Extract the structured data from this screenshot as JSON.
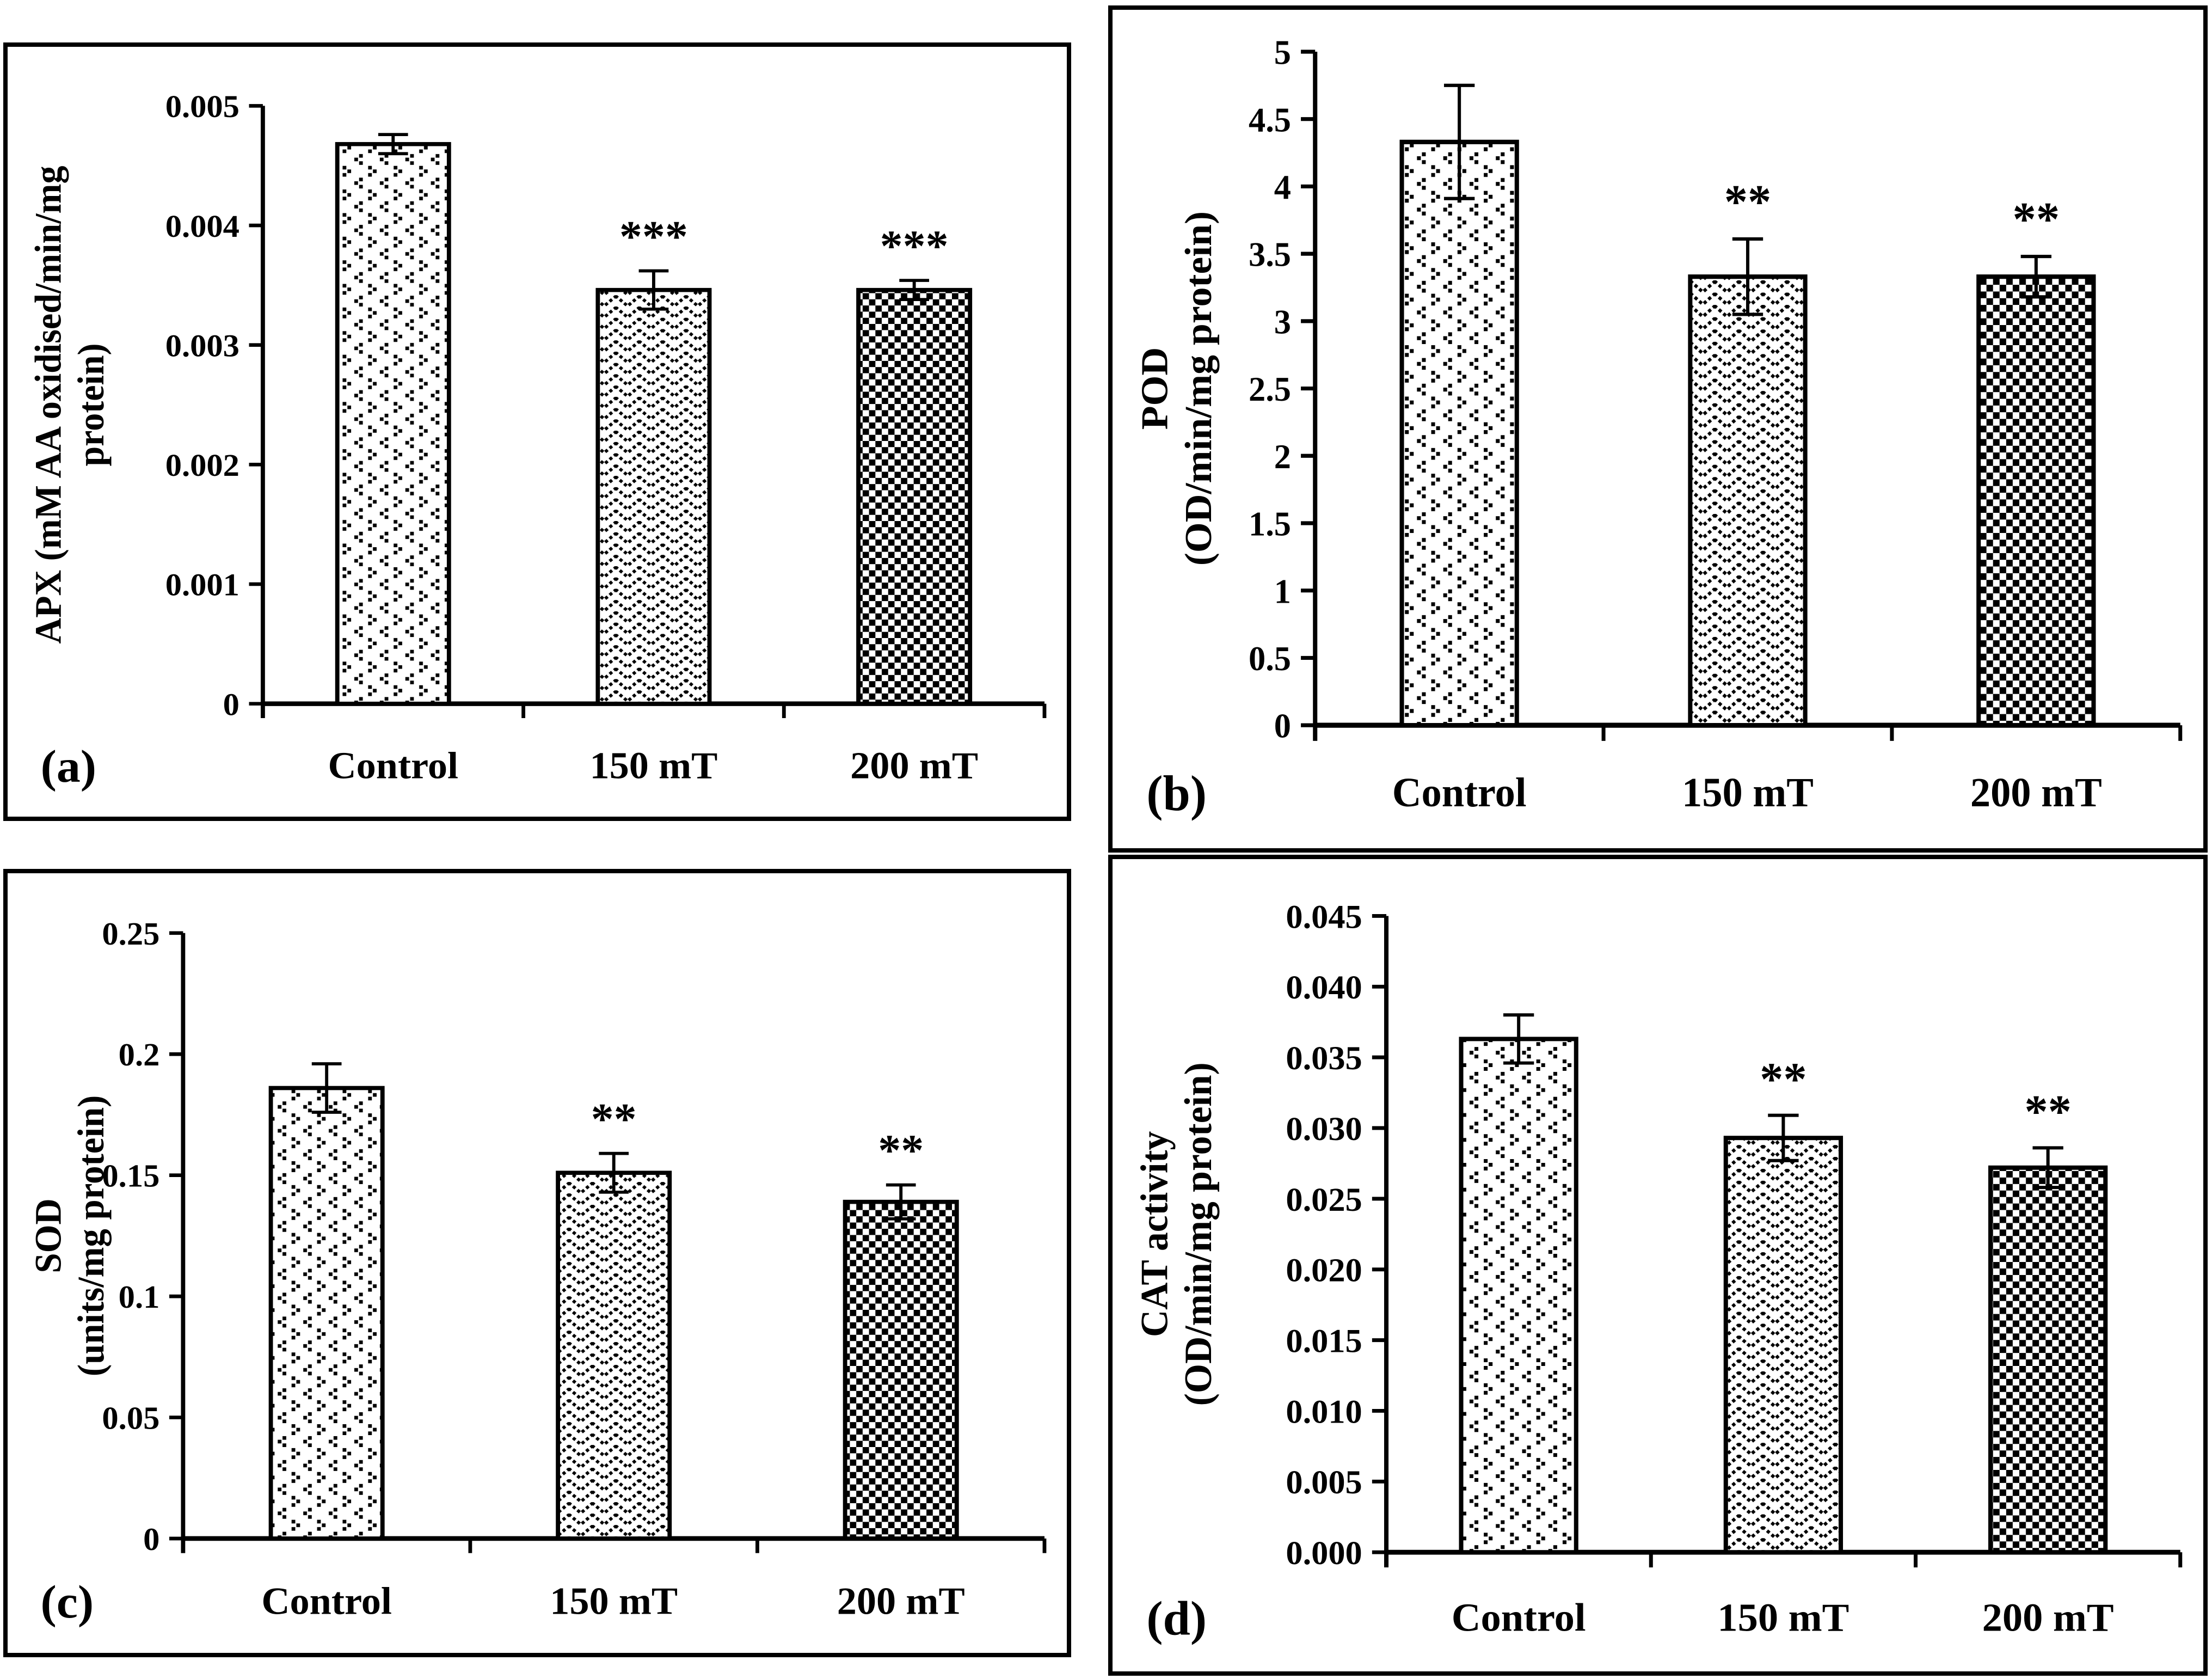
{
  "figure": {
    "background": "#ffffff",
    "ink_color": "#000000",
    "panel_letters": [
      "(a)",
      "(b)",
      "(c)",
      "(d)"
    ]
  },
  "chart_data": [
    {
      "type": "bar",
      "panel_label": "(a)",
      "ylabel_lines": [
        "APX (mM AA oxidised/min/mg",
        "protein)"
      ],
      "ymin": 0,
      "ymax": 0.005,
      "ytick_labels": [
        "0",
        "0.001",
        "0.002",
        "0.003",
        "0.004",
        "0.005"
      ],
      "categories": [
        "Control",
        "150 mT",
        "200 mT"
      ],
      "values": [
        0.00468,
        0.00346,
        0.00346
      ],
      "errors": [
        8e-05,
        0.00016,
        8e-05
      ],
      "significance": [
        "",
        "***",
        "***"
      ],
      "bar_patterns": [
        "dotted-chevrons",
        "herringbone-zigzag",
        "checkerboard"
      ],
      "grid": false,
      "legend": false
    },
    {
      "type": "bar",
      "panel_label": "(b)",
      "ylabel_lines": [
        "POD",
        "(OD/min/mg protein)"
      ],
      "ymin": 0,
      "ymax": 5,
      "ytick_labels": [
        "0",
        "0.5",
        "1",
        "1.5",
        "2",
        "2.5",
        "3",
        "3.5",
        "4",
        "4.5",
        "5"
      ],
      "categories": [
        "Control",
        "150 mT",
        "200 mT"
      ],
      "values": [
        4.33,
        3.33,
        3.33
      ],
      "errors": [
        0.42,
        0.28,
        0.15
      ],
      "significance": [
        "",
        "**",
        "**"
      ],
      "bar_patterns": [
        "dotted-chevrons",
        "herringbone-zigzag",
        "checkerboard"
      ],
      "grid": false,
      "legend": false
    },
    {
      "type": "bar",
      "panel_label": "(c)",
      "ylabel_lines": [
        "SOD",
        "(units/mg protein)"
      ],
      "ymin": 0,
      "ymax": 0.25,
      "ytick_labels": [
        "0",
        "0.05",
        "0.1",
        "0.15",
        "0.2",
        "0.25"
      ],
      "categories": [
        "Control",
        "150 mT",
        "200 mT"
      ],
      "values": [
        0.186,
        0.151,
        0.139
      ],
      "errors": [
        0.01,
        0.008,
        0.007
      ],
      "significance": [
        "",
        "**",
        "**"
      ],
      "bar_patterns": [
        "dotted-chevrons",
        "herringbone-zigzag",
        "checkerboard"
      ],
      "grid": false,
      "legend": false
    },
    {
      "type": "bar",
      "panel_label": "(d)",
      "ylabel_lines": [
        "CAT activity",
        "(OD/min/mg protein)"
      ],
      "ymin": 0,
      "ymax": 0.045,
      "ytick_labels": [
        "0.000",
        "0.005",
        "0.010",
        "0.015",
        "0.020",
        "0.025",
        "0.030",
        "0.035",
        "0.040",
        "0.045"
      ],
      "categories": [
        "Control",
        "150 mT",
        "200 mT"
      ],
      "values": [
        0.0363,
        0.0293,
        0.0272
      ],
      "errors": [
        0.0017,
        0.0016,
        0.0014
      ],
      "significance": [
        "",
        "**",
        "**"
      ],
      "bar_patterns": [
        "dotted-chevrons",
        "herringbone-zigzag",
        "checkerboard"
      ],
      "grid": false,
      "legend": false
    }
  ]
}
